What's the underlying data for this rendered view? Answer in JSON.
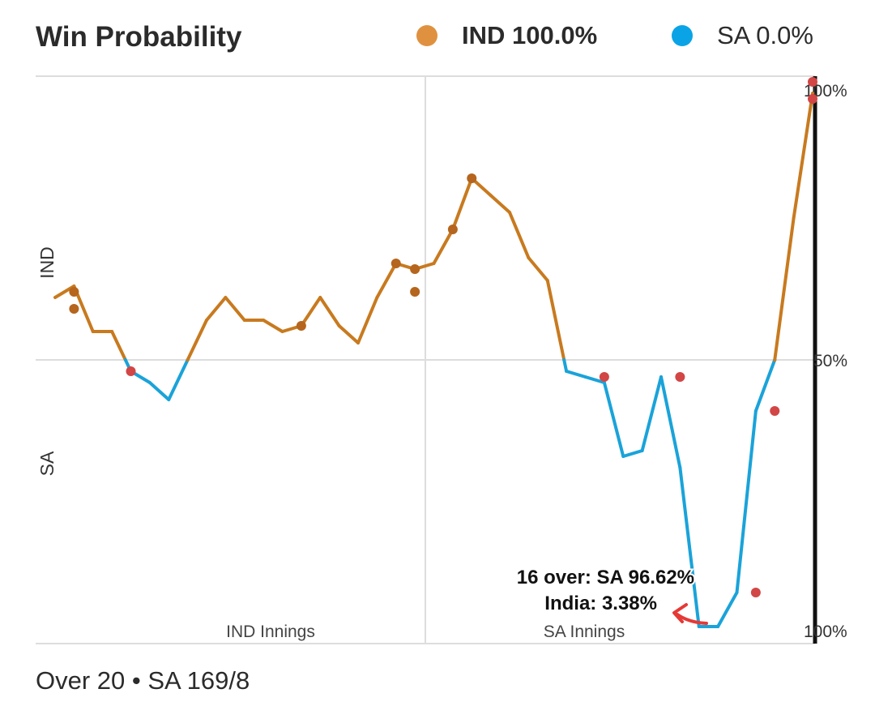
{
  "header": {
    "title": "Win Probability",
    "legend_ind": "IND 100.0%",
    "legend_sa": "SA 0.0%"
  },
  "footer": {
    "text": "Over 20 • SA 169/8"
  },
  "colors": {
    "ind": "#c87a1f",
    "sa": "#1aa3d9",
    "legend_ind": "#e0913f",
    "legend_sa": "#0aa4e6",
    "wicket_ind": "#b5651d",
    "wicket_sa": "#d24646"
  },
  "chart_data": {
    "type": "line",
    "title": "Win Probability",
    "ylabel_top": "IND",
    "ylabel_bottom": "SA",
    "y_ticks": [
      "100%",
      "50%",
      "100%"
    ],
    "x_labels": [
      "IND Innings",
      "SA Innings"
    ],
    "ylim": [
      0,
      100
    ],
    "xlim": [
      0,
      40
    ],
    "series": [
      {
        "name": "IND win probability",
        "x": [
          0,
          1,
          2,
          3,
          4,
          5,
          6,
          7,
          8,
          9,
          10,
          11,
          12,
          13,
          14,
          15,
          16,
          17,
          18,
          19,
          20,
          21,
          22,
          23,
          24,
          25,
          26,
          27,
          28,
          29,
          30,
          31,
          32,
          33,
          34,
          35,
          36,
          37,
          38,
          39,
          40
        ],
        "values": [
          61,
          63,
          55,
          55,
          48,
          46,
          43,
          50,
          57,
          61,
          57,
          57,
          55,
          56,
          61,
          56,
          53,
          61,
          67,
          66,
          67,
          73,
          82,
          79,
          76,
          68,
          64,
          48,
          47,
          46,
          33,
          34,
          47,
          31,
          3,
          3,
          9,
          41,
          50,
          75,
          97
        ]
      }
    ],
    "wickets_ind": [
      {
        "x": 1,
        "y": 62
      },
      {
        "x": 1,
        "y": 59
      },
      {
        "x": 13,
        "y": 56
      },
      {
        "x": 18,
        "y": 67
      },
      {
        "x": 19,
        "y": 66
      },
      {
        "x": 19,
        "y": 62
      },
      {
        "x": 21,
        "y": 73
      },
      {
        "x": 22,
        "y": 82
      }
    ],
    "wickets_sa": [
      {
        "x": 4,
        "y": 48
      },
      {
        "x": 29,
        "y": 47
      },
      {
        "x": 33,
        "y": 47
      },
      {
        "x": 37,
        "y": 9
      },
      {
        "x": 38,
        "y": 41
      },
      {
        "x": 40,
        "y": 99
      },
      {
        "x": 40,
        "y": 96
      }
    ],
    "annotation": {
      "line1": "16 over: SA 96.62%",
      "line2": "India: 3.38%",
      "target_x": 34,
      "target_y": 3
    }
  }
}
